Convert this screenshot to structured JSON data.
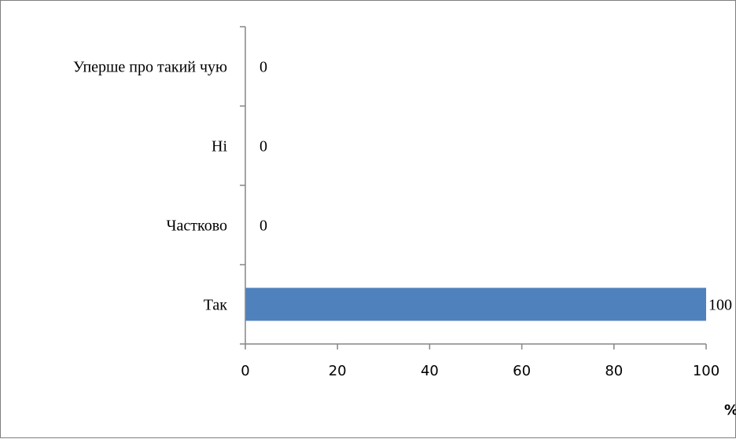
{
  "chart_data": {
    "type": "bar",
    "orientation": "horizontal",
    "categories": [
      "Так",
      "Частково",
      "Ні",
      "Уперше про такий чую"
    ],
    "values": [
      100,
      0,
      0,
      0
    ],
    "data_labels": [
      "100",
      "0",
      "0",
      "0"
    ],
    "xlim": [
      0,
      100
    ],
    "x_ticks": [
      0,
      20,
      40,
      60,
      80,
      100
    ],
    "x_tick_labels": [
      "0",
      "20",
      "40",
      "60",
      "80",
      "100"
    ],
    "xlabel": "%",
    "grid": false,
    "legend": "none",
    "bar_color": "#4f81bd",
    "axis_color": "#868686"
  }
}
